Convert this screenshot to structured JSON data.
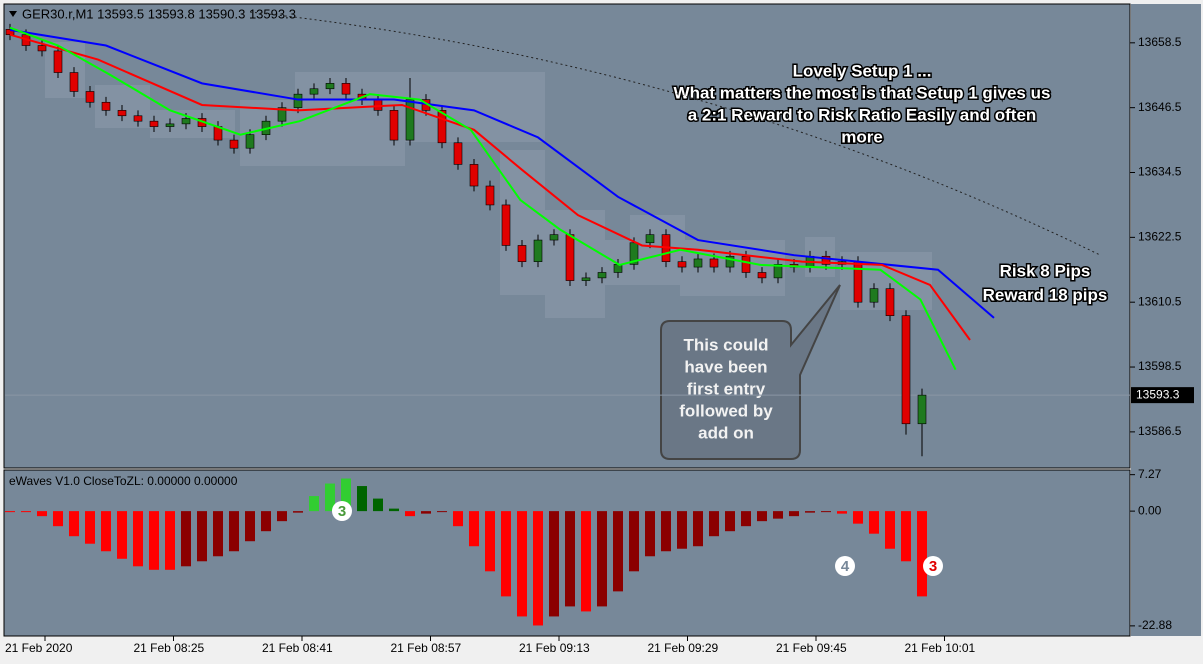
{
  "chart_data": [
    {
      "type": "candlestick",
      "title": "GER30.r,M1  13593.5 13593.8 13590.3 13593.3",
      "open": [
        13661,
        13660,
        13658,
        13657,
        13653,
        13649.5,
        13647.5,
        13646,
        13645,
        13644,
        13643,
        13643.5,
        13644.5,
        13643,
        13640.5,
        13639,
        13641.5,
        13644,
        13646.5,
        13649,
        13650,
        13651,
        13649,
        13648,
        13646,
        13640.5,
        13648,
        13646,
        13640,
        13636,
        13632,
        13628.5,
        13621,
        13618,
        13622,
        13623,
        13614.5,
        13615,
        13616,
        13617.5,
        13621.5,
        13623,
        13618,
        13617,
        13618.5,
        13617,
        13619,
        13616,
        13615,
        13617.5,
        13617,
        13619,
        13617.5,
        13618,
        13610.5,
        13613,
        13608,
        13588
      ],
      "high": [
        13662,
        13661,
        13659,
        13658,
        13654,
        13650.5,
        13648.5,
        13647,
        13646,
        13645,
        13644.5,
        13645.5,
        13645.5,
        13644,
        13641.5,
        13642.5,
        13645,
        13647.5,
        13650,
        13651,
        13652,
        13652,
        13650,
        13649,
        13647,
        13652,
        13649,
        13647,
        13641,
        13637,
        13633,
        13629.5,
        13622,
        13623,
        13624,
        13624,
        13616,
        13617,
        13618.5,
        13622.5,
        13624,
        13624,
        13619,
        13619.5,
        13619.5,
        13620,
        13620,
        13617,
        13618.5,
        13618.5,
        13620,
        13620,
        13619,
        13619,
        13614,
        13614,
        13609,
        13594.5
      ],
      "low": [
        13659,
        13657,
        13656,
        13652,
        13648.5,
        13646.5,
        13645,
        13644,
        13643,
        13642,
        13642,
        13642.5,
        13642,
        13639.5,
        13638,
        13638,
        13640.5,
        13643,
        13645.5,
        13648,
        13649,
        13648,
        13647,
        13645,
        13639.5,
        13639.5,
        13645,
        13639,
        13635,
        13631,
        13627.5,
        13620,
        13617,
        13617,
        13621,
        13613.5,
        13613.5,
        13614,
        13615,
        13616.5,
        13620.5,
        13617,
        13616,
        13616,
        13616,
        13616,
        13615,
        13614,
        13614,
        13616,
        13616,
        13616.5,
        13616.5,
        13609.5,
        13609.5,
        13607,
        13586,
        13582
      ],
      "close": [
        13660,
        13658,
        13657,
        13653,
        13649.5,
        13647.5,
        13646,
        13645,
        13644,
        13643,
        13643.5,
        13644.5,
        13643,
        13640.5,
        13639,
        13641.5,
        13644,
        13646.5,
        13649,
        13650,
        13651,
        13649,
        13648,
        13646,
        13640.5,
        13648,
        13646,
        13640,
        13636,
        13632,
        13628.5,
        13621,
        13618,
        13622,
        13623,
        13614.5,
        13615,
        13616,
        13617.5,
        13621.5,
        13623,
        13618,
        13617,
        13618.5,
        13617,
        13619,
        13616,
        13615,
        13617.5,
        13617,
        13619,
        13617.5,
        13618,
        13610.5,
        13613,
        13608,
        13588,
        13593.3
      ],
      "up_color": "#1f7a1f",
      "down_color": "#e00000",
      "series": [
        {
          "color": "#0000ff",
          "x": [
            0,
            6,
            12,
            18,
            24,
            29,
            33,
            38,
            43,
            49,
            53,
            58,
            61.5
          ],
          "values": [
            13660.9,
            13658,
            13651,
            13648,
            13648,
            13646,
            13641,
            13630,
            13622,
            13619.2,
            13618,
            13616.5,
            13607.6
          ]
        },
        {
          "color": "#ff0000",
          "x": [
            0,
            5.5,
            12,
            18,
            24.5,
            29,
            32,
            35.5,
            39.5,
            43,
            49.5,
            54.5,
            57.5,
            60
          ],
          "values": [
            13660,
            13655.4,
            13647,
            13646,
            13647,
            13642.4,
            13635,
            13626.6,
            13621,
            13620.2,
            13618,
            13617.4,
            13613.7,
            13603.5
          ]
        },
        {
          "color": "#00ff00",
          "x": [
            0,
            3,
            6.25,
            10,
            14.4,
            18.1,
            22.5,
            25.6,
            28.8,
            31.9,
            34.4,
            38.1,
            41.9,
            46.9,
            51.9,
            54.4,
            56.9,
            59.1
          ],
          "values": [
            13661.3,
            13658,
            13652.6,
            13646,
            13641.5,
            13644,
            13649,
            13648,
            13642.4,
            13629.4,
            13623.9,
            13617.4,
            13620.2,
            13617.4,
            13616.8,
            13616.5,
            13611,
            13598
          ]
        }
      ],
      "last_price": 13593.3,
      "ylim": [
        13580,
        13665.5
      ],
      "yticks": [
        13658.5,
        13646.5,
        13634.5,
        13622.5,
        13610.5,
        13598.5,
        13586.5
      ],
      "xtick_labels": [
        "21 Feb 2020",
        "21 Feb 08:25",
        "21 Feb 08:41",
        "21 Feb 08:57",
        "21 Feb 09:13",
        "21 Feb 09:29",
        "21 Feb 09:45",
        "21 Feb 10:01"
      ],
      "annotations": [
        "Lovely Setup 1 ...",
        "What matters the most is that Setup 1 gives us",
        "a 2:1 Reward to Risk Ratio Easily and often",
        "more",
        "Risk 8 Pips",
        "Reward 18 pips"
      ],
      "callout": [
        "This could",
        "have been",
        "first entry",
        "followed by",
        "add on"
      ]
    },
    {
      "type": "histogram-oscillator",
      "title": "eWaves V1.0 CloseToZL: 0.00000 0.00000",
      "values": [
        -0.1,
        -0.1,
        -1,
        -3,
        -5,
        -6.5,
        -8,
        -9.5,
        -11,
        -11.7,
        -11.7,
        -11,
        -10,
        -9,
        -8,
        -6,
        -4,
        -2,
        -0.3,
        3,
        5.5,
        6.5,
        5,
        2.5,
        0.5,
        -1,
        -0.5,
        -0.2,
        -3,
        -7,
        -12,
        -17,
        -21,
        -22.8,
        -21,
        -19,
        -20,
        -19,
        -16,
        -12,
        -9,
        -8,
        -7.5,
        -7,
        -5,
        -4,
        -3,
        -2,
        -1.5,
        -1,
        -0.3,
        -0.2,
        -0.5,
        -2.5,
        -4.5,
        -7.5,
        -10,
        -17
      ],
      "colors": {
        "falling_negative": "#ff0000",
        "rising_negative": "#8b0000",
        "rising_positive": "#32cd32",
        "falling_positive": "#006400"
      },
      "ylim": [
        -24.7,
        8.2
      ],
      "yticks": [
        7.27,
        {
          "value": 0,
          "label": "0.00"
        },
        -22.88
      ],
      "badges": [
        "3",
        "4",
        "3"
      ]
    }
  ]
}
